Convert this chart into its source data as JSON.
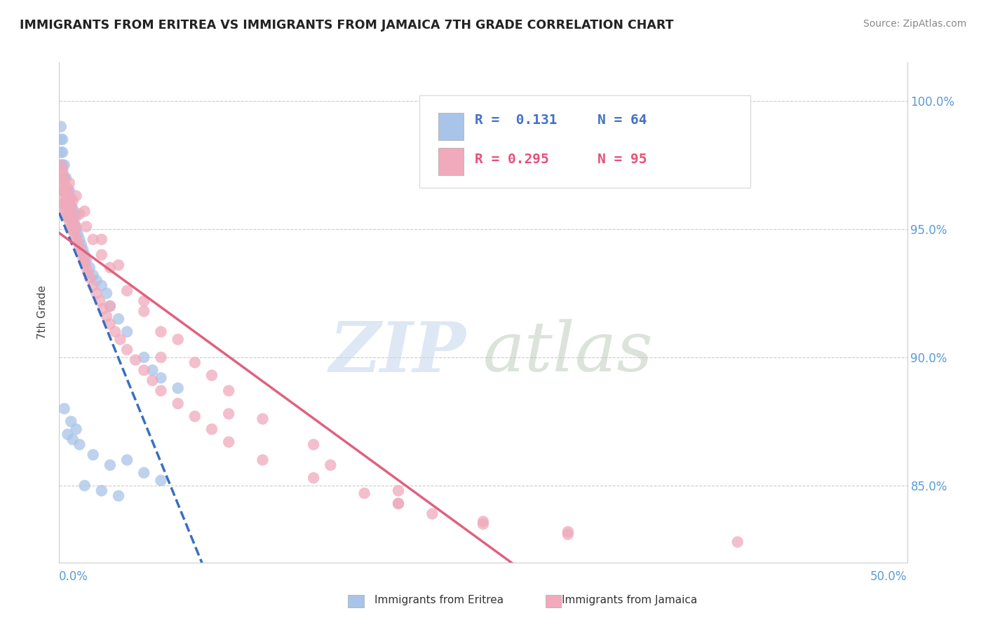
{
  "title": "IMMIGRANTS FROM ERITREA VS IMMIGRANTS FROM JAMAICA 7TH GRADE CORRELATION CHART",
  "source": "Source: ZipAtlas.com",
  "ylabel": "7th Grade",
  "xmin": 0.0,
  "xmax": 0.5,
  "ymin": 0.82,
  "ymax": 1.015,
  "eritrea_color": "#a8c4e8",
  "jamaica_color": "#f0aabb",
  "eritrea_line_color": "#3a6fc0",
  "jamaica_line_color": "#e06080",
  "legend_eritrea_R": 0.131,
  "legend_eritrea_N": 64,
  "legend_jamaica_R": 0.295,
  "legend_jamaica_N": 95,
  "eritrea_x": [
    0.001,
    0.001,
    0.001,
    0.001,
    0.001,
    0.002,
    0.002,
    0.002,
    0.002,
    0.002,
    0.003,
    0.003,
    0.003,
    0.003,
    0.004,
    0.004,
    0.004,
    0.005,
    0.005,
    0.005,
    0.006,
    0.006,
    0.006,
    0.007,
    0.007,
    0.007,
    0.008,
    0.008,
    0.009,
    0.009,
    0.01,
    0.01,
    0.011,
    0.012,
    0.013,
    0.014,
    0.015,
    0.016,
    0.018,
    0.02,
    0.022,
    0.025,
    0.028,
    0.03,
    0.035,
    0.04,
    0.05,
    0.055,
    0.06,
    0.07,
    0.005,
    0.008,
    0.012,
    0.02,
    0.03,
    0.05,
    0.06,
    0.015,
    0.025,
    0.035,
    0.003,
    0.007,
    0.01,
    0.04
  ],
  "eritrea_y": [
    0.97,
    0.975,
    0.98,
    0.985,
    0.99,
    0.965,
    0.97,
    0.975,
    0.98,
    0.985,
    0.96,
    0.965,
    0.97,
    0.975,
    0.96,
    0.965,
    0.97,
    0.955,
    0.96,
    0.965,
    0.955,
    0.96,
    0.965,
    0.955,
    0.958,
    0.962,
    0.952,
    0.958,
    0.95,
    0.956,
    0.95,
    0.955,
    0.948,
    0.946,
    0.944,
    0.942,
    0.94,
    0.938,
    0.935,
    0.932,
    0.93,
    0.928,
    0.925,
    0.92,
    0.915,
    0.91,
    0.9,
    0.895,
    0.892,
    0.888,
    0.87,
    0.868,
    0.866,
    0.862,
    0.858,
    0.855,
    0.852,
    0.85,
    0.848,
    0.846,
    0.88,
    0.875,
    0.872,
    0.86
  ],
  "jamaica_x": [
    0.001,
    0.001,
    0.001,
    0.002,
    0.002,
    0.002,
    0.002,
    0.003,
    0.003,
    0.003,
    0.004,
    0.004,
    0.004,
    0.005,
    0.005,
    0.005,
    0.006,
    0.006,
    0.006,
    0.007,
    0.007,
    0.007,
    0.008,
    0.008,
    0.009,
    0.009,
    0.01,
    0.01,
    0.011,
    0.012,
    0.013,
    0.014,
    0.015,
    0.016,
    0.017,
    0.018,
    0.02,
    0.022,
    0.024,
    0.026,
    0.028,
    0.03,
    0.033,
    0.036,
    0.04,
    0.045,
    0.05,
    0.055,
    0.06,
    0.07,
    0.08,
    0.09,
    0.1,
    0.12,
    0.15,
    0.18,
    0.2,
    0.22,
    0.25,
    0.3,
    0.003,
    0.005,
    0.008,
    0.012,
    0.016,
    0.02,
    0.025,
    0.03,
    0.04,
    0.05,
    0.06,
    0.08,
    0.1,
    0.15,
    0.2,
    0.002,
    0.006,
    0.01,
    0.015,
    0.025,
    0.035,
    0.05,
    0.07,
    0.09,
    0.12,
    0.16,
    0.2,
    0.25,
    0.3,
    0.4,
    0.007,
    0.015,
    0.03,
    0.06,
    0.1
  ],
  "jamaica_y": [
    0.965,
    0.97,
    0.975,
    0.96,
    0.965,
    0.968,
    0.972,
    0.958,
    0.963,
    0.967,
    0.957,
    0.961,
    0.965,
    0.955,
    0.959,
    0.963,
    0.953,
    0.957,
    0.961,
    0.951,
    0.955,
    0.959,
    0.95,
    0.954,
    0.948,
    0.952,
    0.947,
    0.951,
    0.945,
    0.943,
    0.941,
    0.939,
    0.937,
    0.935,
    0.933,
    0.931,
    0.928,
    0.925,
    0.922,
    0.919,
    0.916,
    0.913,
    0.91,
    0.907,
    0.903,
    0.899,
    0.895,
    0.891,
    0.887,
    0.882,
    0.877,
    0.872,
    0.867,
    0.86,
    0.853,
    0.847,
    0.843,
    0.839,
    0.835,
    0.832,
    0.97,
    0.966,
    0.961,
    0.956,
    0.951,
    0.946,
    0.94,
    0.935,
    0.926,
    0.918,
    0.91,
    0.898,
    0.887,
    0.866,
    0.848,
    0.973,
    0.968,
    0.963,
    0.957,
    0.946,
    0.936,
    0.922,
    0.907,
    0.893,
    0.876,
    0.858,
    0.843,
    0.836,
    0.831,
    0.828,
    0.95,
    0.938,
    0.92,
    0.9,
    0.878
  ]
}
